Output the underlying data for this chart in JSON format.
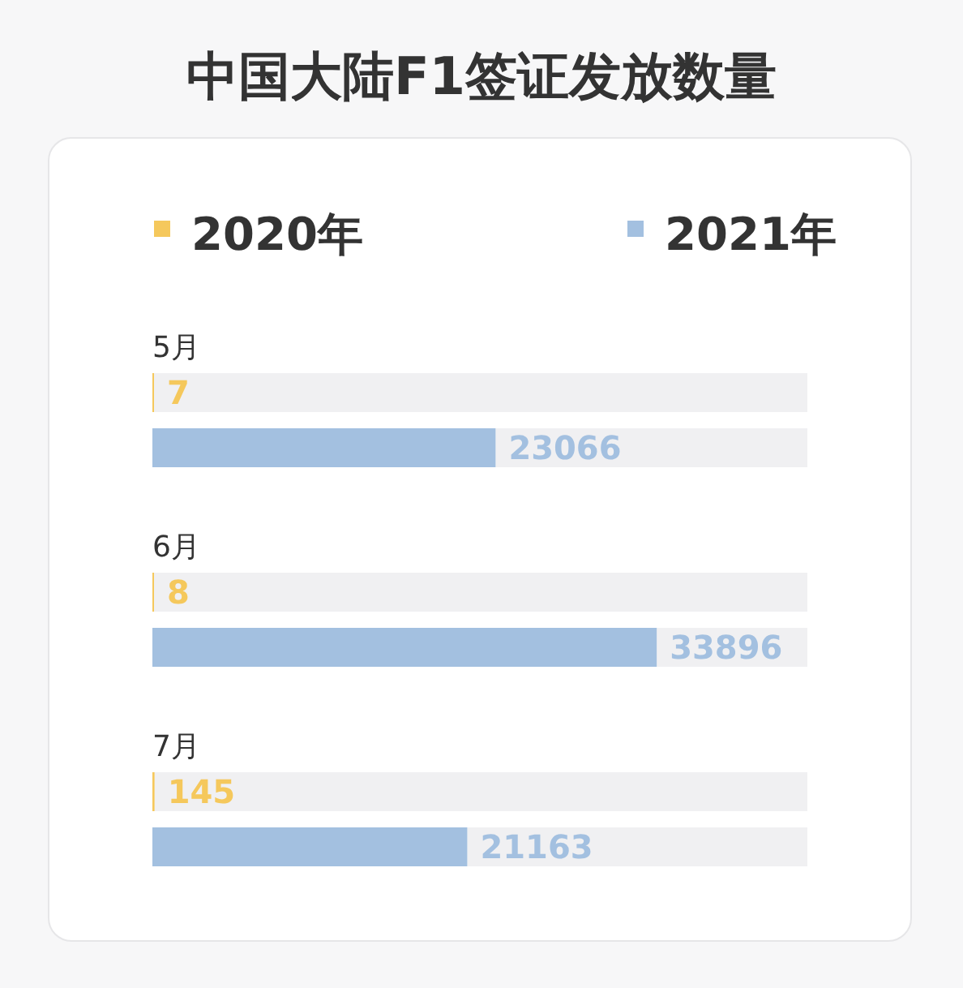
{
  "chart_data": {
    "type": "bar",
    "orientation": "horizontal",
    "title": "中国大陆F1签证发放数量",
    "categories": [
      "5月",
      "6月",
      "7月"
    ],
    "series": [
      {
        "name": "2020年",
        "color": "#f5c85c",
        "values": [
          7,
          8,
          145
        ]
      },
      {
        "name": "2021年",
        "color": "#a3c0e0",
        "values": [
          23066,
          33896,
          21163
        ]
      }
    ],
    "data_labels": true,
    "legend": "top"
  }
}
